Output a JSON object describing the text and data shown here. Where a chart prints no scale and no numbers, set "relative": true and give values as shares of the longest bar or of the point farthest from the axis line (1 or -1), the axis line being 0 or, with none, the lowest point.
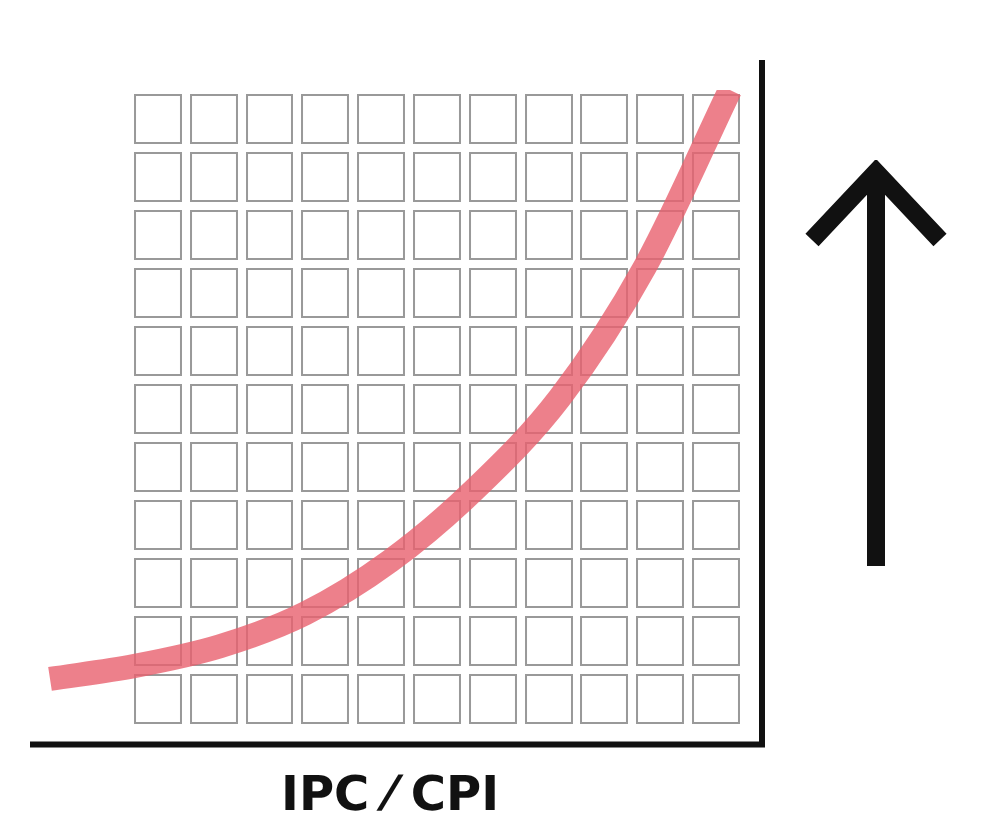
{
  "chart_data": {
    "type": "line",
    "relative": true,
    "xlabel": "IPC ⁄ CPI",
    "categories": [
      null,
      null,
      null,
      null,
      null,
      null,
      null,
      null,
      null
    ],
    "series": [
      {
        "color": "#e8606e",
        "values": [
          0.1,
          0.12,
          0.15,
          0.2,
          0.28,
          0.39,
          0.53,
          0.73,
          1.0
        ]
      }
    ],
    "legend": false,
    "tick_labels": false,
    "marker": "none",
    "line_style": "solid"
  }
}
